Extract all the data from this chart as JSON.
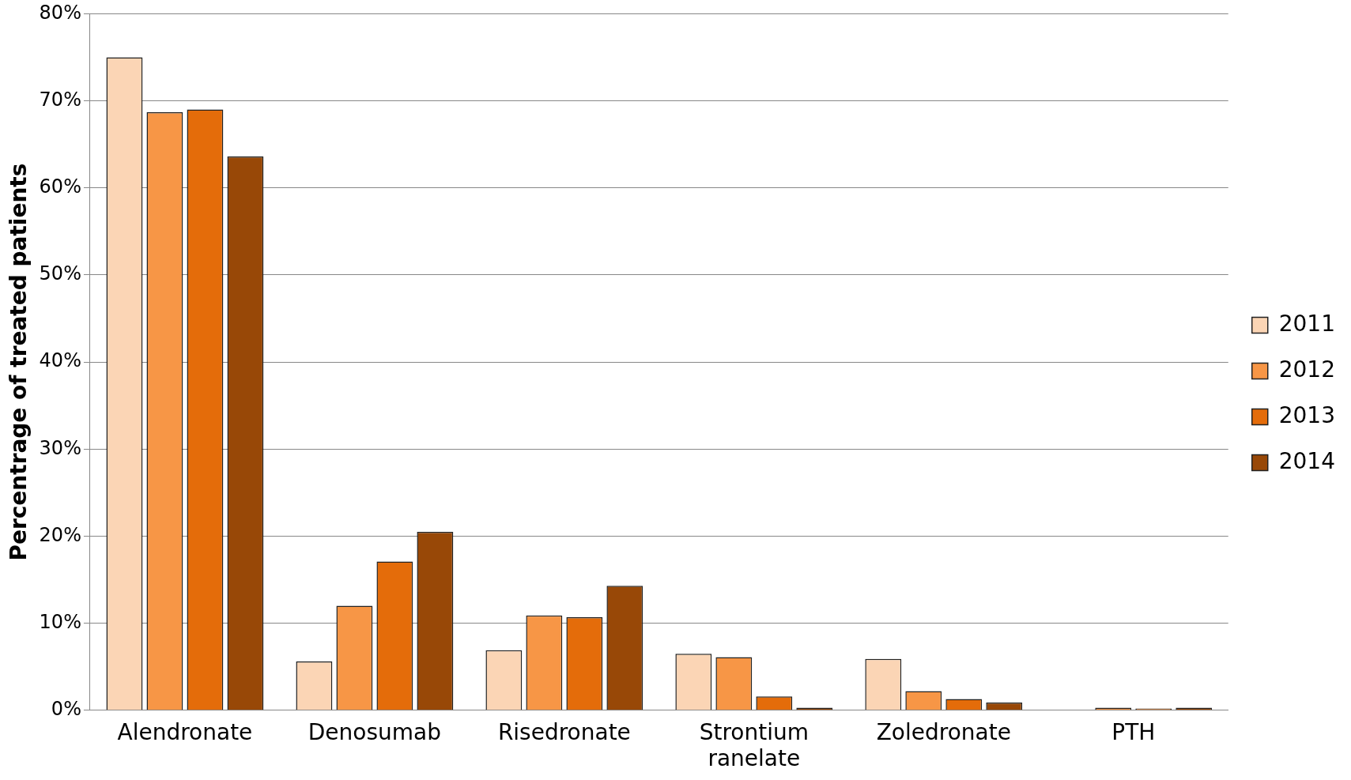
{
  "chart_data": {
    "type": "bar",
    "ylabel": "Percentrage of treated patients",
    "categories": [
      "Alendronate",
      "Denosumab",
      "Risedronate",
      "Strontium ranelate",
      "Zoledronate",
      "PTH"
    ],
    "series": [
      {
        "name": "2011",
        "color": "#fbd5b5",
        "values": [
          75,
          5.6,
          6.9,
          6.5,
          5.9,
          null
        ]
      },
      {
        "name": "2012",
        "color": "#f79646",
        "values": [
          68.7,
          12,
          10.9,
          6.1,
          2.2,
          0.3
        ]
      },
      {
        "name": "2013",
        "color": "#e46c0a",
        "values": [
          69,
          17.1,
          10.7,
          1.6,
          1.3,
          0.2
        ]
      },
      {
        "name": "2014",
        "color": "#984807",
        "values": [
          63.6,
          20.5,
          14.3,
          0.3,
          0.9,
          0.3
        ]
      }
    ],
    "ylim": [
      0,
      80
    ],
    "yticks": [
      {
        "value": 0,
        "label": "0%"
      },
      {
        "value": 10,
        "label": "10%"
      },
      {
        "value": 20,
        "label": "20%"
      },
      {
        "value": 30,
        "label": "30%"
      },
      {
        "value": 40,
        "label": "40%"
      },
      {
        "value": 50,
        "label": "50%"
      },
      {
        "value": 60,
        "label": "60%"
      },
      {
        "value": 70,
        "label": "70%"
      },
      {
        "value": 80,
        "label": "80%"
      }
    ],
    "grid": "y",
    "legend": "right"
  }
}
